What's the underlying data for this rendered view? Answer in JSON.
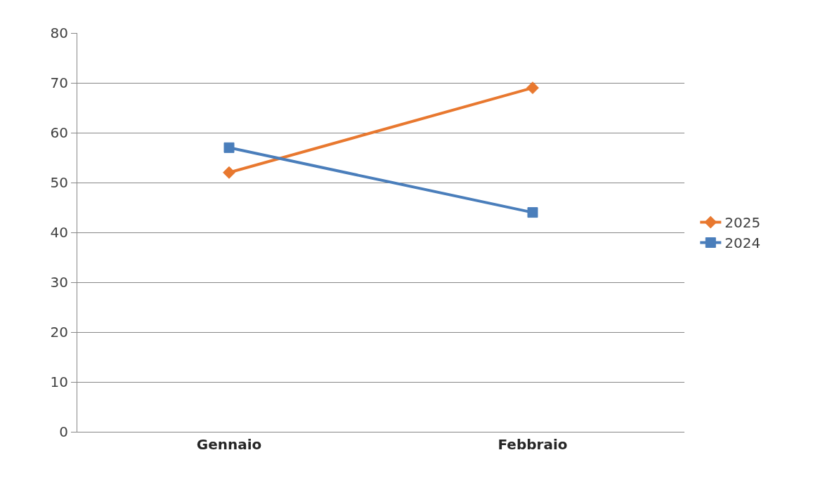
{
  "chart_data": {
    "type": "line",
    "categories": [
      "Gennaio",
      "Febbraio"
    ],
    "series": [
      {
        "name": "2025",
        "color": "#e8782f",
        "values": [
          52,
          69
        ],
        "marker": "diamond"
      },
      {
        "name": "2024",
        "color": "#4a7ebb",
        "values": [
          57,
          44
        ],
        "marker": "square"
      }
    ],
    "ylim": [
      0,
      80
    ],
    "yticks": [
      0,
      10,
      20,
      30,
      40,
      50,
      60,
      70,
      80
    ],
    "grid": "y",
    "legend": "right",
    "line_style": "solid"
  }
}
